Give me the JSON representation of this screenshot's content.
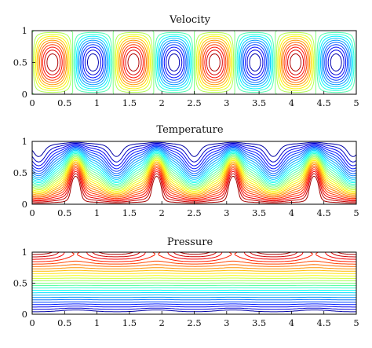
{
  "chart_data": [
    {
      "type": "contour",
      "title": "Velocity",
      "xlabel": "",
      "ylabel": "",
      "xlim": [
        0,
        5
      ],
      "ylim": [
        0,
        1
      ],
      "xticks": [
        "0",
        "0.5",
        "1",
        "1.5",
        "2",
        "2.5",
        "3",
        "3.5",
        "4",
        "4.5",
        "5"
      ],
      "yticks": [
        "0",
        "0.5",
        "1"
      ],
      "field": {
        "kind": "stream_cells",
        "cells": 8,
        "cell_centers_x": [
          0.36,
          0.97,
          1.6,
          2.2,
          2.8,
          3.35,
          4.0,
          4.6
        ],
        "center_y": 0.5,
        "signs": [
          -1,
          1,
          -1,
          1,
          -1,
          1,
          -1,
          1
        ]
      },
      "colormap": "jet",
      "levels": 22
    },
    {
      "type": "contour",
      "title": "Temperature",
      "xlabel": "",
      "ylabel": "",
      "xlim": [
        0,
        5
      ],
      "ylim": [
        0,
        1
      ],
      "xticks": [
        "0",
        "0.5",
        "1",
        "1.5",
        "2",
        "2.5",
        "3",
        "3.5",
        "4",
        "4.5",
        "5"
      ],
      "yticks": [
        "0",
        "0.5",
        "1"
      ],
      "field": {
        "kind": "conduction_with_plumes",
        "hot_wall": "bottom",
        "cold_wall": "top",
        "rising_plume_x": [
          0.67,
          1.92,
          3.1,
          4.35
        ],
        "sinking_plume_x": [
          0.1,
          1.3,
          2.5,
          3.72,
          4.95
        ]
      },
      "colormap": "jet",
      "levels": 28
    },
    {
      "type": "contour",
      "title": "Pressure",
      "xlabel": "",
      "ylabel": "",
      "xlim": [
        0,
        5
      ],
      "ylim": [
        0,
        1
      ],
      "xticks": [
        "0",
        "0.5",
        "1",
        "1.5",
        "2",
        "2.5",
        "3",
        "3.5",
        "4",
        "4.5",
        "5"
      ],
      "yticks": [
        "0",
        "0.5",
        "1"
      ],
      "field": {
        "kind": "stratified_with_wall_lobes",
        "high": "top",
        "low": "bottom",
        "top_lobe_x": [
          0.67,
          1.92,
          3.1,
          4.35
        ],
        "bottom_lobe_x": [
          0.67,
          1.92,
          3.1,
          4.35
        ]
      },
      "colormap": "jet",
      "levels": 26
    }
  ]
}
